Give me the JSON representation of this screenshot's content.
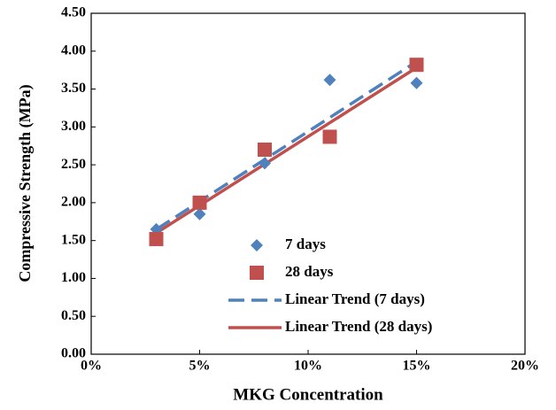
{
  "chart_data": {
    "type": "scatter",
    "xlabel": "MKG Concentration",
    "ylabel": "Compressive Strength (MPa)",
    "x": [
      3,
      5,
      8,
      11,
      15
    ],
    "series": [
      {
        "name": "7 days",
        "color": "#4f81bd",
        "marker": "diamond",
        "values": [
          1.65,
          1.85,
          2.52,
          3.62,
          3.58
        ]
      },
      {
        "name": "28 days",
        "color": "#c0504d",
        "marker": "square",
        "values": [
          1.52,
          2.0,
          2.7,
          2.87,
          3.82
        ]
      }
    ],
    "trendlines": [
      {
        "name": "Linear Trend (7 days)",
        "color": "#4f81bd",
        "of": 0,
        "dashed": true
      },
      {
        "name": "Linear Trend (28 days)",
        "color": "#c0504d",
        "of": 1,
        "dashed": false
      }
    ],
    "xlim": [
      0,
      20
    ],
    "xticks": [
      {
        "value": 0,
        "label": "0%"
      },
      {
        "value": 5,
        "label": "5%"
      },
      {
        "value": 10,
        "label": "10%"
      },
      {
        "value": 15,
        "label": "15%"
      },
      {
        "value": 20,
        "label": "20%"
      }
    ],
    "ylim": [
      0,
      4.5
    ],
    "yticks": [
      {
        "value": 0,
        "label": "0.00"
      },
      {
        "value": 0.5,
        "label": "0.50"
      },
      {
        "value": 1,
        "label": "1.00"
      },
      {
        "value": 1.5,
        "label": "1.50"
      },
      {
        "value": 2,
        "label": "2.00"
      },
      {
        "value": 2.5,
        "label": "2.50"
      },
      {
        "value": 3,
        "label": "3.00"
      },
      {
        "value": 3.5,
        "label": "3.50"
      },
      {
        "value": 4,
        "label": "4.00"
      },
      {
        "value": 4.5,
        "label": "4.50"
      }
    ],
    "legend": "lower right"
  }
}
